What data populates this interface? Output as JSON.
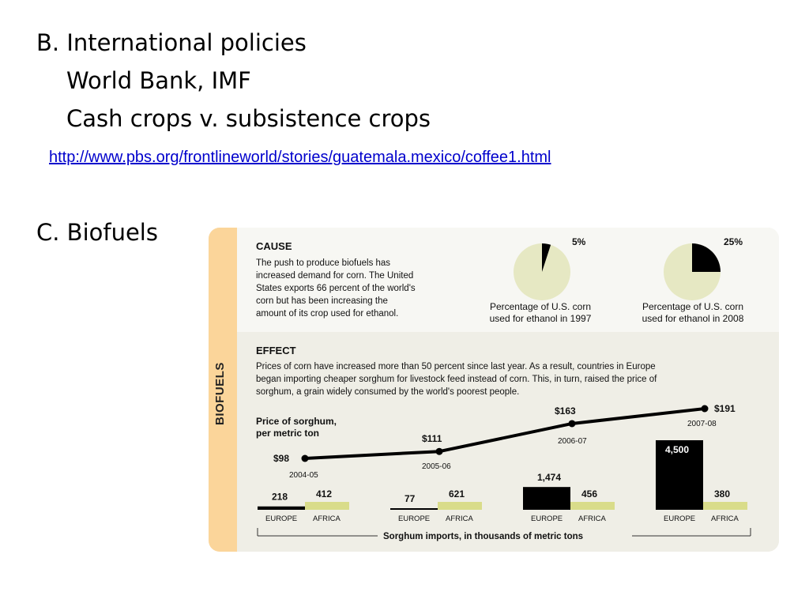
{
  "slide": {
    "line_b": "B. International policies",
    "line_b1": "World Bank, IMF",
    "line_b2": "Cash crops v. subsistence crops",
    "link": "http://www.pbs.org/frontlineworld/stories/guatemala.mexico/coffee1.html",
    "line_c": "C.  Biofuels"
  },
  "infographic": {
    "side_label": "BIOFUELS",
    "cause_heading": "CAUSE",
    "cause_text": [
      "The push to produce biofuels has",
      "increased demand for corn. The United",
      "States exports 66 percent of the world's",
      "corn but has been increasing the",
      "amount of its crop used for ethanol."
    ],
    "pie1_caption": [
      "Percentage of U.S. corn",
      "used for ethanol in 1997"
    ],
    "pie2_caption": [
      "Percentage of U.S. corn",
      "used for ethanol in 2008"
    ],
    "effect_heading": "EFFECT",
    "effect_text": [
      "Prices of corn have increased more than 50 percent since last year. As a result, countries in Europe",
      "began importing cheaper sorghum for livestock feed instead of corn. This, in turn, raised the price of",
      "sorghum, a grain widely consumed by the world's poorest people."
    ],
    "price_label": [
      "Price of sorghum,",
      "per metric ton"
    ],
    "imports_label": "Sorghum imports, in thousands of metric tons",
    "colors": {
      "pie_bg": "#e6e8c3",
      "pie_fill": "#000000",
      "band": "#fbd59a",
      "africa": "#d9dc8a",
      "europe": "#000000"
    }
  },
  "chart_data": [
    {
      "type": "pie",
      "values": [
        5,
        95
      ],
      "labels": [
        "5%",
        ""
      ]
    },
    {
      "type": "pie",
      "values": [
        25,
        75
      ],
      "labels": [
        "25%",
        ""
      ]
    },
    {
      "type": "line",
      "x": [
        "2004-05",
        "2005-06",
        "2006-07",
        "2007-08"
      ],
      "values": [
        98,
        111,
        163,
        191
      ],
      "labels": [
        "$98",
        "$111",
        "$163",
        "$191"
      ]
    },
    {
      "type": "bar",
      "categories": [
        "2004-05",
        "2005-06",
        "2006-07",
        "2007-08"
      ],
      "series": [
        {
          "name": "EUROPE",
          "values": [
            218,
            77,
            1474,
            4500
          ],
          "labels": [
            "218",
            "77",
            "1,474",
            "4,500"
          ]
        },
        {
          "name": "AFRICA",
          "values": [
            412,
            621,
            456,
            380
          ],
          "labels": [
            "412",
            "621",
            "456",
            "380"
          ]
        }
      ]
    }
  ]
}
